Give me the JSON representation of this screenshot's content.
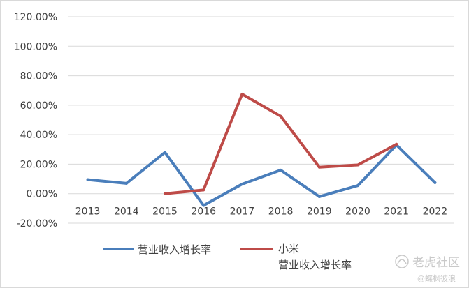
{
  "chart_data": {
    "type": "line",
    "title": "",
    "xlabel": "",
    "ylabel": "",
    "categories": [
      "2013",
      "2014",
      "2015",
      "2016",
      "2017",
      "2018",
      "2019",
      "2020",
      "2021",
      "2022"
    ],
    "y_ticks": [
      "120.00%",
      "100.00%",
      "80.00%",
      "60.00%",
      "40.00%",
      "20.00%",
      "0.00%",
      "-20.00%"
    ],
    "ylim": [
      -20,
      120
    ],
    "grid": true,
    "legend_position": "bottom",
    "series": [
      {
        "name": "营业收入增长率",
        "color": "#4a7ebb",
        "values": [
          9.5,
          7.0,
          28.0,
          -8.0,
          6.5,
          16.0,
          -2.0,
          5.5,
          33.0,
          7.5
        ]
      },
      {
        "name": "小米\n营业收入增长率",
        "color": "#be4b48",
        "values": [
          null,
          null,
          0.0,
          2.5,
          67.5,
          52.5,
          18.0,
          19.5,
          33.5,
          null
        ]
      }
    ]
  },
  "legend": {
    "series1_label": "营业收入增长率",
    "series2_line1": "小米",
    "series2_line2": "营业收入增长率"
  },
  "watermark": {
    "brand": "老虎社区",
    "handle": "@蝶枫彼浪"
  }
}
